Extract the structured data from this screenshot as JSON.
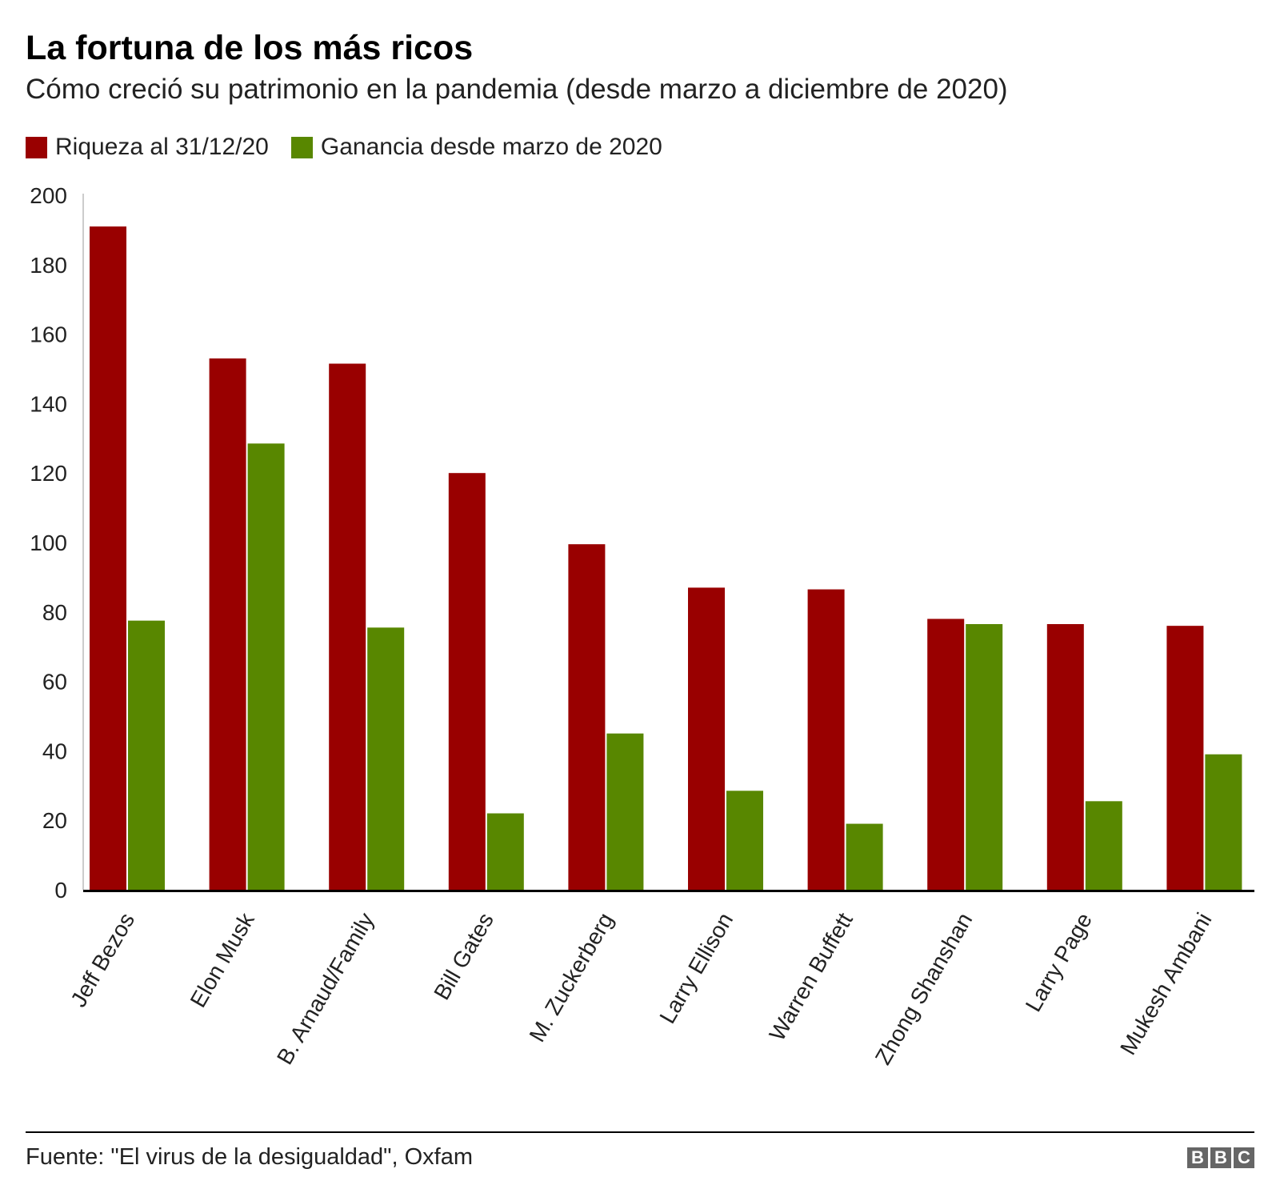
{
  "header": {
    "title": "La fortuna de los más ricos",
    "subtitle": "Cómo creció su patrimonio en la pandemia (desde marzo a diciembre de 2020)"
  },
  "colors": {
    "wealth": "#990000",
    "gain": "#588700",
    "axis": "#000000",
    "text": "#222222"
  },
  "chart_data": {
    "type": "bar",
    "title": "La fortuna de los más ricos",
    "subtitle": "Cómo creció su patrimonio en la pandemia (desde marzo a diciembre de 2020)",
    "xlabel": "",
    "ylabel": "",
    "ylim": [
      0,
      200
    ],
    "yticks": [
      0,
      20,
      40,
      60,
      80,
      100,
      120,
      140,
      160,
      180,
      200
    ],
    "grid": false,
    "legend_position": "top-left",
    "categories": [
      "Jeff Bezos",
      "Elon Musk",
      "B. Arnaud/Family",
      "Bill Gates",
      "M. Zuckerberg",
      "Larry Ellison",
      "Warren Buffett",
      "Zhong Shanshan",
      "Larry Page",
      "Mukesh Ambani"
    ],
    "series": [
      {
        "name": "Riqueza al 31/12/20",
        "color": "#990000",
        "values": [
          191,
          153,
          151.5,
          120,
          99.5,
          87,
          86.5,
          78,
          76.5,
          76
        ]
      },
      {
        "name": "Ganancia desde marzo de 2020",
        "color": "#588700",
        "values": [
          77.5,
          128.5,
          75.5,
          22,
          45,
          28.5,
          19,
          76.5,
          25.5,
          39
        ]
      }
    ]
  },
  "footer": {
    "source": "Fuente: \"El virus de la desigualdad\", Oxfam",
    "logo_letters": [
      "B",
      "B",
      "C"
    ]
  }
}
